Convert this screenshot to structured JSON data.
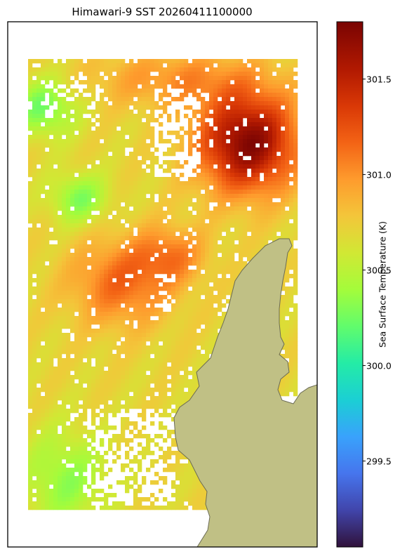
{
  "title": "Himawari-9 SST 20260411100000",
  "colorbar": {
    "label": "Sea Surface Temperature (K)",
    "vmin": 299.05,
    "vmax": 301.8,
    "ticks": [
      "299.5",
      "300.0",
      "300.5",
      "301.0",
      "301.5"
    ]
  },
  "colors": {
    "land": "#c0c085",
    "coast": "#6b6b55",
    "frame": "#000000"
  },
  "chart_data": {
    "type": "heatmap",
    "title": "Himawari-9 SST 20260411100000",
    "colorbar_label": "Sea Surface Temperature (K)",
    "colorbar_ticks": [
      299.5,
      300.0,
      300.5,
      301.0,
      301.5
    ],
    "value_range": [
      299.05,
      301.8
    ],
    "colormap": "turbo",
    "notes_markers": "land mask in olive, missing data white"
  }
}
